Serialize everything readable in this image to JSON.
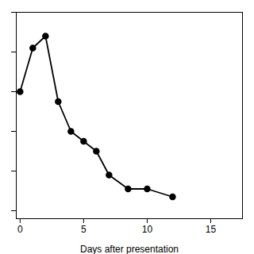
{
  "chart_data": {
    "type": "line",
    "x": [
      0,
      1,
      2,
      3,
      4,
      5,
      6,
      7,
      8.5,
      10,
      12
    ],
    "values": [
      0.6,
      0.82,
      0.88,
      0.55,
      0.4,
      0.35,
      0.3,
      0.18,
      0.11,
      0.11,
      0.07
    ],
    "xlabel": "Days after presentation",
    "xlim": [
      -0.3,
      17.5
    ],
    "ylim": [
      -0.04,
      1.0
    ],
    "xticks": [
      0,
      5,
      10,
      15
    ],
    "yticks": [
      0.0,
      0.2,
      0.4,
      0.6,
      0.8,
      1.0
    ],
    "color": "#000000",
    "marker": "circle",
    "tick_labels": "x",
    "grid": false
  }
}
